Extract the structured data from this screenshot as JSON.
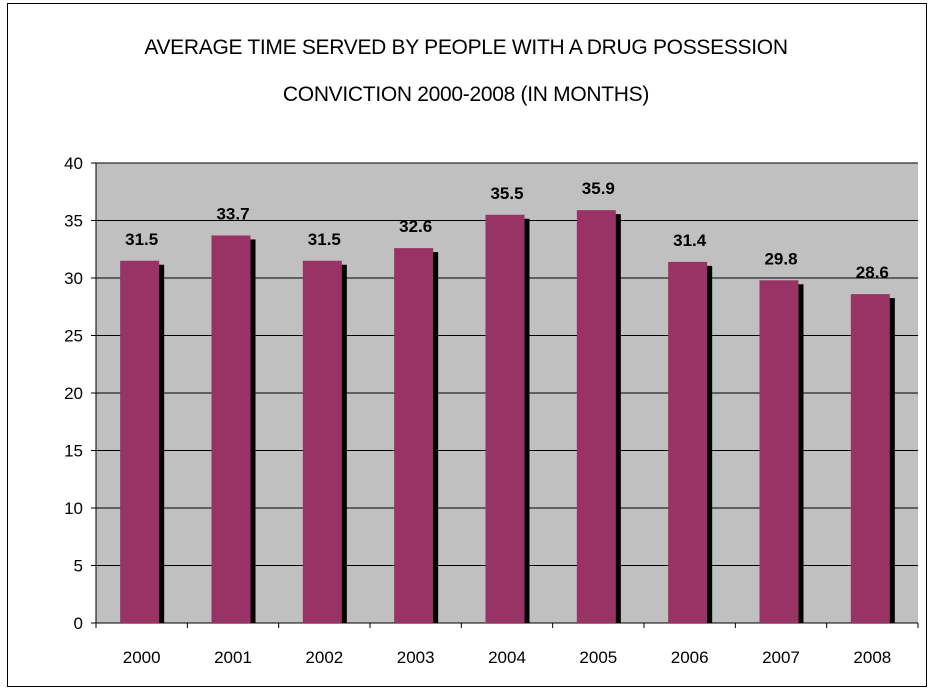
{
  "chart_data": {
    "type": "bar",
    "title_line1": "AVERAGE TIME SERVED BY PEOPLE WITH A DRUG POSSESSION",
    "title_line2": "CONVICTION 2000-2008 (IN MONTHS)",
    "categories": [
      "2000",
      "2001",
      "2002",
      "2003",
      "2004",
      "2005",
      "2006",
      "2007",
      "2008"
    ],
    "values": [
      31.5,
      33.7,
      31.5,
      32.6,
      35.5,
      35.9,
      31.4,
      29.8,
      28.6
    ],
    "value_labels": [
      "31.5",
      "33.7",
      "31.5",
      "32.6",
      "35.5",
      "35.9",
      "31.4",
      "29.8",
      "28.6"
    ],
    "y_ticks": [
      "0",
      "5",
      "10",
      "15",
      "20",
      "25",
      "30",
      "35",
      "40"
    ],
    "ylim": [
      0,
      40
    ],
    "grid": true,
    "legend": "none",
    "colors": {
      "bar": "#993366",
      "shadow": "#000000",
      "plot_bg": "#c0c0c0",
      "grid": "#000000"
    }
  }
}
